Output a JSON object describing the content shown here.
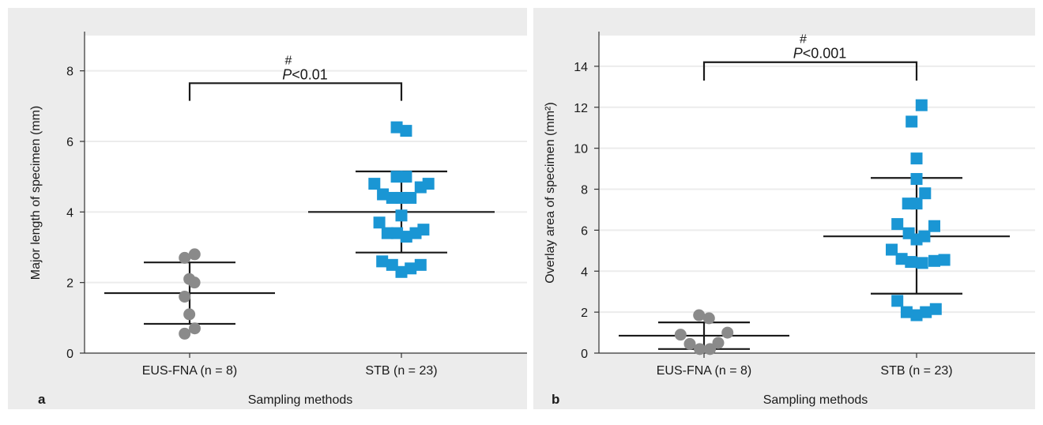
{
  "colors": {
    "panel_background": "#ececec",
    "plot_background": "#ffffff",
    "gridline": "#ececec",
    "eus_fna_marker": "#8a8a8a",
    "stb_marker": "#1a96d4",
    "error_bar": "#1a1a1a",
    "axis": "#333333"
  },
  "chart_data": [
    {
      "type": "scatter",
      "panel_label": "a",
      "title": "",
      "xlabel": "Sampling methods",
      "ylabel": "Major length of specimen (mm)",
      "ylim": [
        0,
        9
      ],
      "yticks": [
        "0",
        "2",
        "4",
        "6",
        "8"
      ],
      "grid": true,
      "categories": [
        "EUS-FNA (n = 8)",
        "STB (n = 23)"
      ],
      "series": [
        {
          "category": "EUS-FNA (n = 8)",
          "marker": "circle",
          "color": "#8a8a8a",
          "points": [
            {
              "offset": -0.35,
              "y": 2.7
            },
            {
              "offset": 0.35,
              "y": 2.8
            },
            {
              "offset": -0.02,
              "y": 2.1
            },
            {
              "offset": 0.34,
              "y": 2.0
            },
            {
              "offset": -0.35,
              "y": 1.6
            },
            {
              "offset": -0.02,
              "y": 1.1
            },
            {
              "offset": 0.36,
              "y": 0.7
            },
            {
              "offset": -0.35,
              "y": 0.55
            }
          ],
          "mean": 1.7,
          "sd_low": 0.83,
          "sd_high": 2.57
        },
        {
          "category": "STB (n = 23)",
          "marker": "square",
          "color": "#1a96d4",
          "points": [
            {
              "offset": -0.33,
              "y": 6.4
            },
            {
              "offset": 0.33,
              "y": 6.3
            },
            {
              "offset": -0.33,
              "y": 5.0
            },
            {
              "offset": 0.33,
              "y": 5.0
            },
            {
              "offset": -1.9,
              "y": 4.8
            },
            {
              "offset": 1.9,
              "y": 4.8
            },
            {
              "offset": 1.35,
              "y": 4.7
            },
            {
              "offset": -1.3,
              "y": 4.5
            },
            {
              "offset": -0.65,
              "y": 4.4
            },
            {
              "offset": 0.0,
              "y": 4.4
            },
            {
              "offset": 0.65,
              "y": 4.4
            },
            {
              "offset": 0.0,
              "y": 3.9
            },
            {
              "offset": -1.55,
              "y": 3.7
            },
            {
              "offset": 1.55,
              "y": 3.5
            },
            {
              "offset": -0.98,
              "y": 3.4
            },
            {
              "offset": -0.3,
              "y": 3.4
            },
            {
              "offset": 0.35,
              "y": 3.3
            },
            {
              "offset": 1.0,
              "y": 3.4
            },
            {
              "offset": -1.35,
              "y": 2.6
            },
            {
              "offset": -0.65,
              "y": 2.5
            },
            {
              "offset": 0.65,
              "y": 2.4
            },
            {
              "offset": 1.35,
              "y": 2.5
            },
            {
              "offset": 0.0,
              "y": 2.3
            }
          ],
          "mean": 4.0,
          "sd_low": 2.85,
          "sd_high": 5.15
        }
      ],
      "bracket": {
        "y": 7.65,
        "drop_to": 7.15,
        "symbol": "#",
        "text": "P<0.01",
        "p_letter": "P",
        "p_rest": "<0.01"
      }
    },
    {
      "type": "scatter",
      "panel_label": "b",
      "title": "",
      "xlabel": "Sampling methods",
      "ylabel": "Overlay area of specimen (mm²)",
      "ylim": [
        0,
        15.5
      ],
      "yticks": [
        "0",
        "2",
        "4",
        "6",
        "8",
        "10",
        "12",
        "14"
      ],
      "grid": true,
      "categories": [
        "EUS-FNA (n = 8)",
        "STB (n = 23)"
      ],
      "series": [
        {
          "category": "EUS-FNA (n = 8)",
          "marker": "circle",
          "color": "#8a8a8a",
          "points": [
            {
              "offset": -0.35,
              "y": 1.85
            },
            {
              "offset": 0.35,
              "y": 1.7
            },
            {
              "offset": -1.65,
              "y": 0.9
            },
            {
              "offset": 1.65,
              "y": 1.0
            },
            {
              "offset": -1.0,
              "y": 0.45
            },
            {
              "offset": 1.0,
              "y": 0.5
            },
            {
              "offset": -0.3,
              "y": 0.2
            },
            {
              "offset": 0.42,
              "y": 0.2
            }
          ],
          "mean": 0.85,
          "sd_low": 0.2,
          "sd_high": 1.5
        },
        {
          "category": "STB (n = 23)",
          "marker": "square",
          "color": "#1a96d4",
          "points": [
            {
              "offset": 0.35,
              "y": 12.1
            },
            {
              "offset": -0.35,
              "y": 11.3
            },
            {
              "offset": 0.0,
              "y": 9.5
            },
            {
              "offset": 0.0,
              "y": 8.5
            },
            {
              "offset": 0.6,
              "y": 7.8
            },
            {
              "offset": -0.6,
              "y": 7.3
            },
            {
              "offset": 0.0,
              "y": 7.3
            },
            {
              "offset": -1.35,
              "y": 6.3
            },
            {
              "offset": 1.25,
              "y": 6.2
            },
            {
              "offset": -0.55,
              "y": 5.85
            },
            {
              "offset": 0.55,
              "y": 5.7
            },
            {
              "offset": 0.0,
              "y": 5.55
            },
            {
              "offset": -1.75,
              "y": 5.05
            },
            {
              "offset": -1.05,
              "y": 4.6
            },
            {
              "offset": 1.95,
              "y": 4.55
            },
            {
              "offset": 1.25,
              "y": 4.5
            },
            {
              "offset": -0.4,
              "y": 4.45
            },
            {
              "offset": 0.4,
              "y": 4.4
            },
            {
              "offset": -1.35,
              "y": 2.55
            },
            {
              "offset": -0.7,
              "y": 2.0
            },
            {
              "offset": 0.0,
              "y": 1.85
            },
            {
              "offset": 0.65,
              "y": 2.0
            },
            {
              "offset": 1.35,
              "y": 2.15
            }
          ],
          "mean": 5.7,
          "sd_low": 2.9,
          "sd_high": 8.55
        }
      ],
      "bracket": {
        "y": 14.2,
        "drop_to": 13.3,
        "symbol": "#",
        "text": "P<0.001",
        "p_letter": "P",
        "p_rest": "<0.001"
      }
    }
  ]
}
